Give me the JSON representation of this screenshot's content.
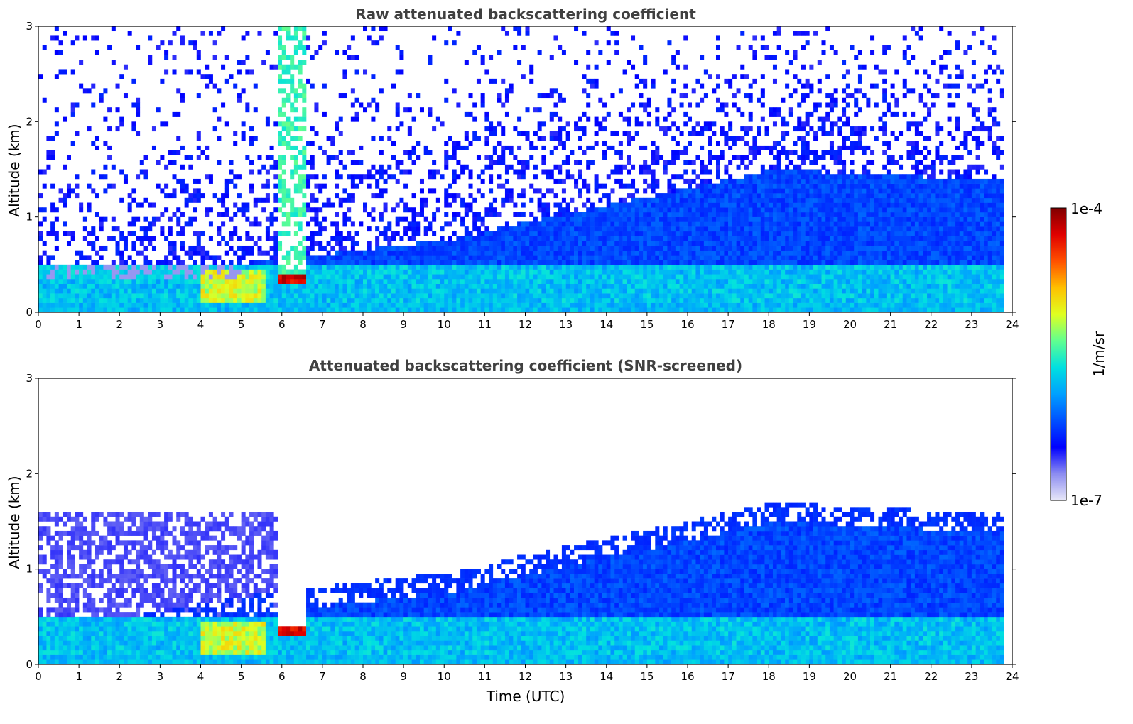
{
  "chart_data": [
    {
      "type": "heatmap",
      "title": "Raw attenuated backscattering coefficient",
      "xlabel": "",
      "ylabel": "Altitude (km)",
      "xlim": [
        0,
        24
      ],
      "ylim": [
        0,
        3
      ],
      "x_ticks": [
        0,
        1,
        2,
        3,
        4,
        5,
        6,
        7,
        8,
        9,
        10,
        11,
        12,
        13,
        14,
        15,
        16,
        17,
        18,
        19,
        20,
        21,
        22,
        23,
        24
      ],
      "y_ticks": [
        0,
        1,
        2,
        3
      ],
      "screened": false
    },
    {
      "type": "heatmap",
      "title": "Attenuated backscattering coefficient (SNR-screened)",
      "xlabel": "Time (UTC)",
      "ylabel": "Altitude (km)",
      "xlim": [
        0,
        24
      ],
      "ylim": [
        0,
        3
      ],
      "x_ticks": [
        0,
        1,
        2,
        3,
        4,
        5,
        6,
        7,
        8,
        9,
        10,
        11,
        12,
        13,
        14,
        15,
        16,
        17,
        18,
        19,
        20,
        21,
        22,
        23,
        24
      ],
      "y_ticks": [
        0,
        1,
        2,
        3
      ],
      "screened": true
    }
  ],
  "colorbar": {
    "label": "1/m/sr",
    "max_label": "1e-4",
    "min_label": "1e-7",
    "colormap": [
      "#e8e8f8",
      "#8c8cf0",
      "#0000ff",
      "#0050ff",
      "#00a0ff",
      "#00e0e0",
      "#60ff90",
      "#e0ff20",
      "#ffc000",
      "#ff5000",
      "#e00000",
      "#800000"
    ]
  }
}
